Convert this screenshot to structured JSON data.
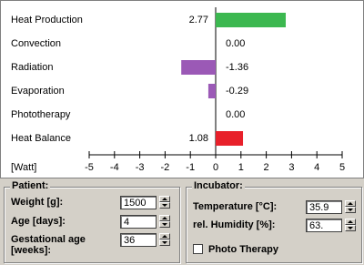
{
  "chart_data": {
    "type": "bar",
    "orientation": "horizontal",
    "categories": [
      "Heat Production",
      "Convection",
      "Radiation",
      "Evaporation",
      "Phototherapy",
      "Heat Balance"
    ],
    "values": [
      2.77,
      0,
      -1.36,
      -0.29,
      0,
      1.08
    ],
    "value_labels": [
      "2.77",
      "0.00",
      "-1.36",
      "-0.29",
      "0.00",
      "1.08"
    ],
    "colors": [
      "#3cb850",
      "#808080",
      "#9b59b6",
      "#9b59b6",
      "#808080",
      "#e8202a"
    ],
    "xlabel": "[Watt]",
    "xlim": [
      -5,
      5
    ],
    "xticks": [
      -5,
      -4,
      -3,
      -2,
      -1,
      0,
      1,
      2,
      3,
      4,
      5
    ]
  },
  "patient": {
    "title": "Patient:",
    "fields": [
      {
        "label": "Weight [g]:",
        "value": "1500"
      },
      {
        "label": "Age [days]:",
        "value": "4"
      },
      {
        "label": "Gestational age [weeks]:",
        "value": "36"
      }
    ]
  },
  "incubator": {
    "title": "Incubator:",
    "fields": [
      {
        "label": "Temperature [°C]:",
        "value": "35.9"
      },
      {
        "label": "rel. Humidity [%]:",
        "value": "63."
      }
    ],
    "checkbox": "Photo Therapy"
  }
}
